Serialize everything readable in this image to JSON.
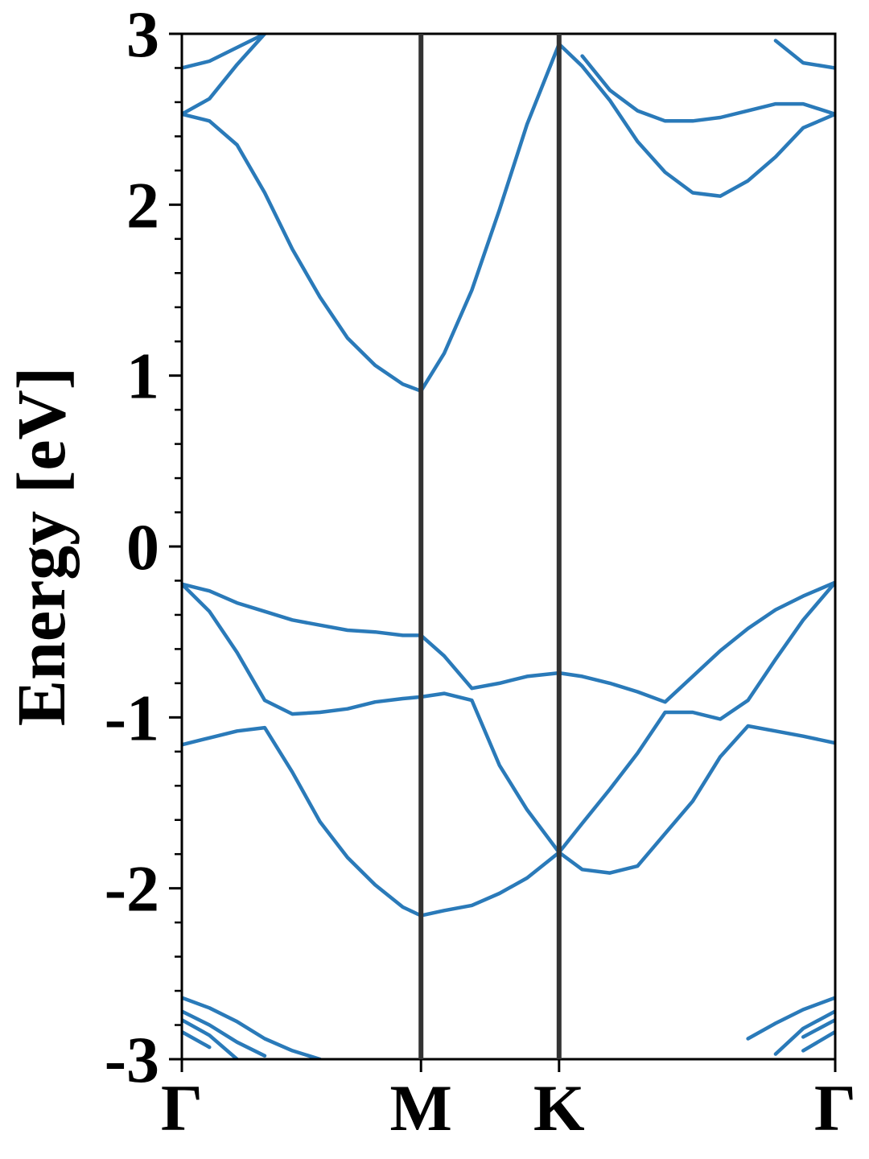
{
  "chart_data": {
    "type": "line",
    "ylabel": "Energy [eV]",
    "xlim": [
      0,
      2.366
    ],
    "ylim": [
      -3,
      3
    ],
    "xticks": [
      {
        "value": 0,
        "label": "Γ"
      },
      {
        "value": 0.866,
        "label": "M"
      },
      {
        "value": 1.366,
        "label": "K"
      },
      {
        "value": 2.366,
        "label": "Γ"
      }
    ],
    "yticks": [
      -3,
      -2,
      -1,
      0,
      1,
      2,
      3
    ],
    "yminorticks": [
      -2.8,
      -2.6,
      -2.4,
      -2.2,
      -1.8,
      -1.6,
      -1.4,
      -1.2,
      -0.8,
      -0.6,
      -0.4,
      -0.2,
      0.2,
      0.4,
      0.6,
      0.8,
      1.2,
      1.4,
      1.6,
      1.8,
      2.2,
      2.4,
      2.6,
      2.8
    ],
    "vlines": true,
    "x": [
      0,
      0.1,
      0.2,
      0.3,
      0.4,
      0.5,
      0.6,
      0.7,
      0.8,
      0.866,
      0.95,
      1.05,
      1.15,
      1.25,
      1.366,
      1.45,
      1.55,
      1.65,
      1.75,
      1.85,
      1.95,
      2.05,
      2.15,
      2.25,
      2.366
    ],
    "series": [
      {
        "color": "#2a7ab9",
        "values": [
          -0.22,
          -0.26,
          -0.33,
          -0.38,
          -0.43,
          -0.46,
          -0.49,
          -0.5,
          -0.52,
          -0.52,
          -0.64,
          -0.83,
          -0.8,
          -0.76,
          -0.74,
          -0.76,
          -0.8,
          -0.85,
          -0.91,
          -0.76,
          -0.61,
          -0.48,
          -0.37,
          -0.29,
          -0.21
        ]
      },
      {
        "color": "#2a7ab9",
        "values": [
          -0.22,
          -0.38,
          -0.62,
          -0.9,
          -0.98,
          -0.97,
          -0.95,
          -0.91,
          -0.89,
          -0.88,
          -0.86,
          -0.9,
          -1.28,
          -1.54,
          -1.79,
          -1.62,
          -1.42,
          -1.21,
          -0.97,
          -0.97,
          -1.01,
          -0.9,
          -0.66,
          -0.43,
          -0.21
        ]
      },
      {
        "color": "#2a7ab9",
        "values": [
          -1.16,
          -1.12,
          -1.08,
          -1.06,
          -1.32,
          -1.61,
          -1.82,
          -1.98,
          -2.11,
          -2.16,
          -2.13,
          -2.1,
          -2.03,
          -1.94,
          -1.79,
          -1.89,
          -1.91,
          -1.87,
          -1.68,
          -1.49,
          -1.23,
          -1.05,
          -1.08,
          -1.11,
          -1.15
        ]
      },
      {
        "color": "#2a7ab9",
        "values": [
          2.53,
          2.49,
          2.35,
          2.07,
          1.74,
          1.46,
          1.22,
          1.06,
          0.95,
          0.91,
          1.13,
          1.5,
          1.97,
          2.47,
          2.94,
          2.81,
          2.61,
          2.37,
          2.19,
          2.07,
          2.05,
          2.14,
          2.28,
          2.45,
          2.53
        ]
      },
      {
        "color": "#2a7ab9",
        "values": [
          2.53,
          2.62,
          2.82,
          3.0,
          null,
          null,
          null,
          null,
          null,
          null,
          null,
          null,
          null,
          null,
          null,
          2.87,
          2.67,
          2.55,
          2.49,
          2.49,
          2.51,
          2.55,
          2.59,
          2.59,
          2.53
        ]
      },
      {
        "color": "#2a7ab9",
        "values": [
          2.8,
          2.84,
          2.92,
          3.0,
          null,
          null,
          null,
          null,
          null,
          null,
          null,
          null,
          null,
          null,
          null,
          null,
          null,
          null,
          null,
          null,
          null,
          null,
          2.96,
          2.83,
          2.8
        ]
      },
      {
        "color": "#2a7ab9",
        "values": [
          -2.64,
          -2.7,
          -2.78,
          -2.88,
          -2.95,
          -3.0,
          null,
          null,
          null,
          null,
          null,
          null,
          null,
          null,
          null,
          null,
          null,
          null,
          null,
          null,
          null,
          -2.88,
          -2.79,
          -2.71,
          -2.64
        ]
      },
      {
        "color": "#2a7ab9",
        "values": [
          -2.72,
          -2.8,
          -2.9,
          -2.98,
          null,
          null,
          null,
          null,
          null,
          null,
          null,
          null,
          null,
          null,
          null,
          null,
          null,
          null,
          null,
          null,
          null,
          null,
          -2.97,
          -2.82,
          -2.72
        ]
      },
      {
        "color": "#2a7ab9",
        "values": [
          -2.77,
          -2.86,
          -3.0,
          null,
          null,
          null,
          null,
          null,
          null,
          null,
          null,
          null,
          null,
          null,
          null,
          null,
          null,
          null,
          null,
          null,
          null,
          null,
          null,
          -2.87,
          -2.77
        ]
      },
      {
        "color": "#2a7ab9",
        "values": [
          -2.84,
          -2.93,
          null,
          null,
          null,
          null,
          null,
          null,
          null,
          null,
          null,
          null,
          null,
          null,
          null,
          null,
          null,
          null,
          null,
          null,
          null,
          null,
          null,
          -2.95,
          -2.84
        ]
      }
    ]
  }
}
